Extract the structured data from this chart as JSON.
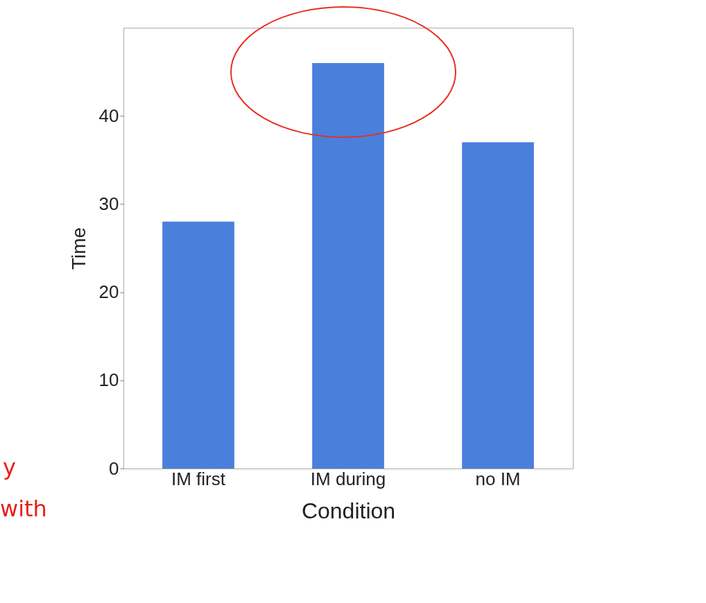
{
  "chart_data": {
    "type": "bar",
    "xlabel": "Condition",
    "ylabel": "Time",
    "categories": [
      "IM  first",
      "IM during",
      "no IM"
    ],
    "values": [
      28,
      46,
      37
    ],
    "color": "#4a7fdc",
    "ylim": [
      0,
      50
    ],
    "yticks": [
      0,
      10,
      20,
      30,
      40
    ],
    "grid": false,
    "annotations": [
      "y",
      "with"
    ]
  }
}
